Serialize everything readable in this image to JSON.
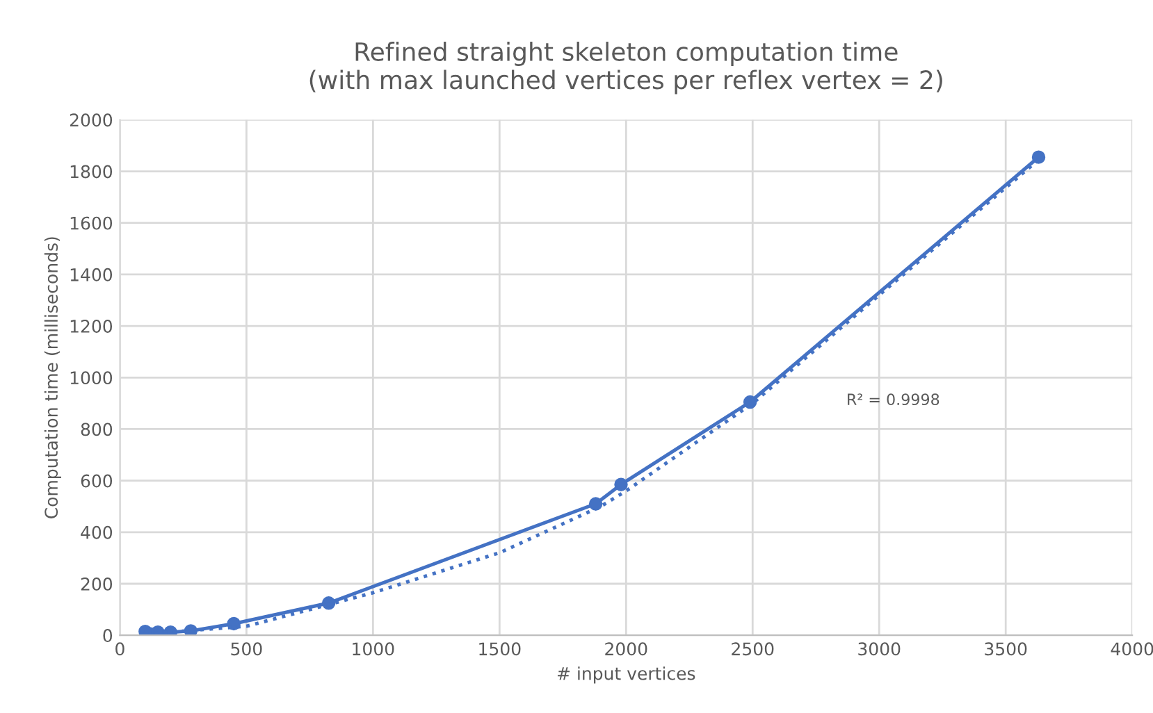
{
  "chart_data": {
    "type": "line",
    "title": "Refined straight skeleton computation time\n(with max launched vertices per reflex vertex = 2)",
    "xlabel": "# input vertices",
    "ylabel": "Computation time (milliseconds)",
    "series": [
      {
        "color": "#4472c4",
        "marker": "circle",
        "line_style": "solid",
        "x": [
          100,
          120,
          150,
          200,
          280,
          450,
          825,
          1880,
          1980,
          2490,
          3630
        ],
        "values": [
          15,
          5,
          12,
          12,
          17,
          45,
          125,
          510,
          585,
          905,
          1855
        ]
      },
      {
        "color": "#4472c4",
        "marker": "none",
        "line_style": "dotted",
        "x": [
          100,
          500,
          1000,
          1500,
          1900,
          2000,
          2500,
          3000,
          3630
        ],
        "values": [
          5,
          35,
          165,
          320,
          500,
          560,
          900,
          1320,
          1845
        ]
      }
    ],
    "annotations": [
      "R² = 0.9998"
    ],
    "xlim": [
      0,
      4000
    ],
    "xticks": [
      0,
      500,
      1000,
      1500,
      2000,
      2500,
      3000,
      3500,
      4000
    ],
    "ylim": [
      0,
      2000
    ],
    "yticks": [
      0,
      200,
      400,
      600,
      800,
      1000,
      1200,
      1400,
      1600,
      1800,
      2000
    ],
    "grid": true,
    "legend": false
  }
}
